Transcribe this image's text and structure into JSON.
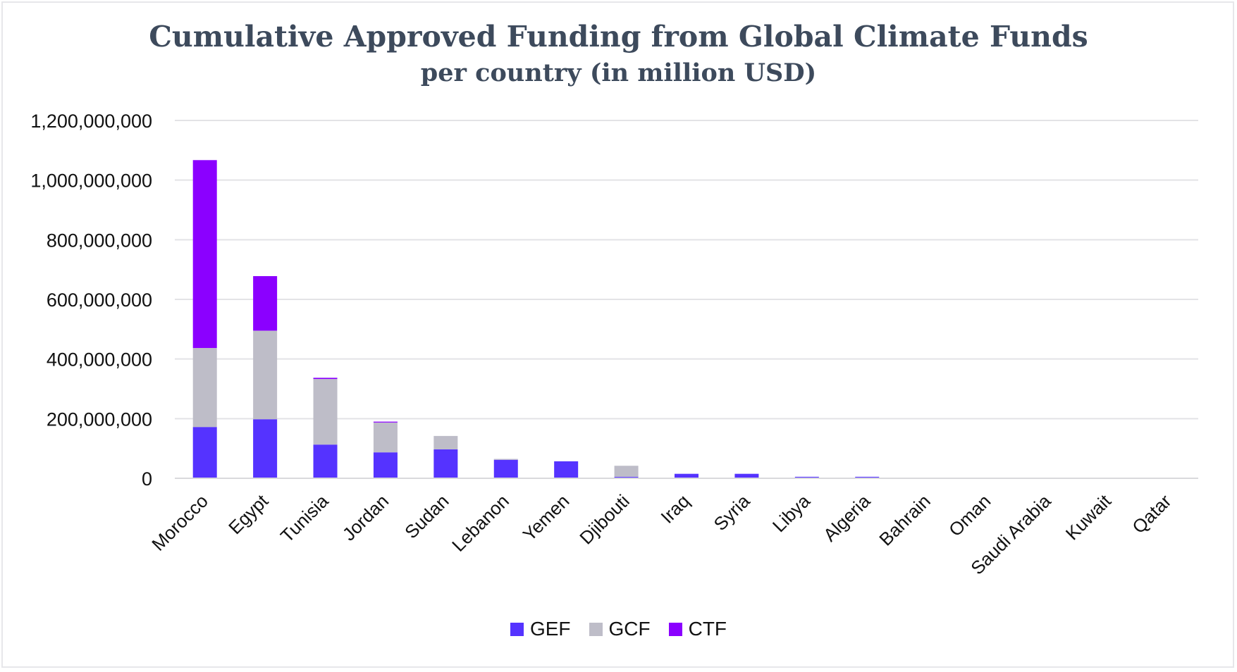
{
  "chart_data": {
    "type": "bar",
    "stacked": true,
    "title": "Cumulative Approved Funding from Global Climate Funds",
    "subtitle": "per country (in million USD)",
    "xlabel": "",
    "ylabel": "",
    "ylim": [
      0,
      1200000000
    ],
    "yticks": [
      0,
      200000000,
      400000000,
      600000000,
      800000000,
      1000000000,
      1200000000
    ],
    "ytick_labels": [
      "0",
      "200,000,000",
      "400,000,000",
      "600,000,000",
      "800,000,000",
      "1,000,000,000",
      "1,200,000,000"
    ],
    "grid": true,
    "legend_position": "bottom",
    "categories": [
      "Morocco",
      "Egypt",
      "Tunisia",
      "Jordan",
      "Sudan",
      "Lebanon",
      "Yemen",
      "Djibouti",
      "Iraq",
      "Syria",
      "Libya",
      "Algeria",
      "Bahrain",
      "Oman",
      "Saudi Arabia",
      "Kuwait",
      "Qatar"
    ],
    "series": [
      {
        "name": "GEF",
        "color": "#5533ff",
        "values": [
          172000000,
          198000000,
          113000000,
          87000000,
          97000000,
          62000000,
          57000000,
          5000000,
          15000000,
          15000000,
          5000000,
          5000000,
          0,
          0,
          0,
          0,
          0
        ]
      },
      {
        "name": "GCF",
        "color": "#bebdc8",
        "values": [
          265000000,
          297000000,
          220000000,
          100000000,
          45000000,
          3000000,
          0,
          37000000,
          0,
          0,
          0,
          0,
          0,
          0,
          0,
          0,
          0
        ]
      },
      {
        "name": "CTF",
        "color": "#8b00ff",
        "values": [
          630000000,
          183000000,
          4000000,
          3000000,
          0,
          0,
          0,
          0,
          0,
          0,
          0,
          0,
          0,
          0,
          0,
          0,
          0
        ]
      }
    ]
  }
}
